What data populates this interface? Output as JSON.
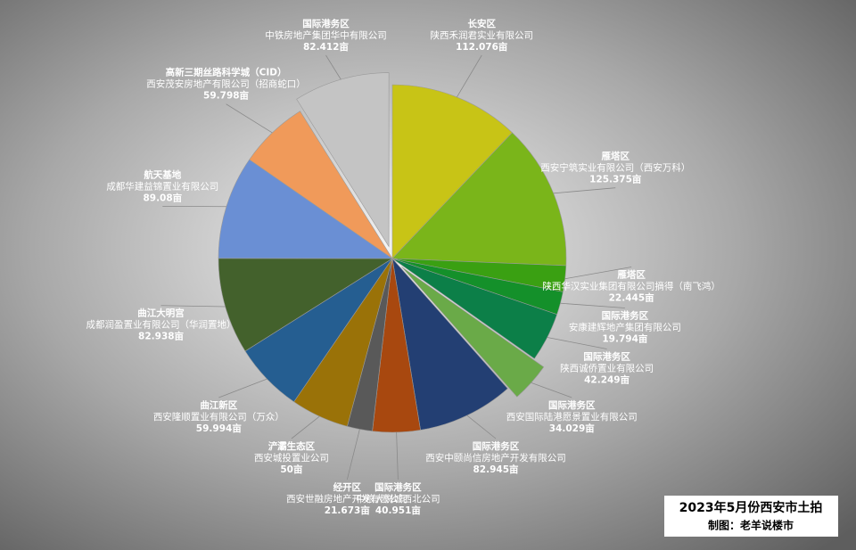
{
  "chart_data": {
    "type": "pie",
    "categories": [
      "长安区",
      "雁塔区",
      "雁塔区",
      "国际港务区",
      "国际港务区",
      "国际港务区",
      "国际港务区",
      "国际港务区",
      "经开区",
      "浐灞生态区",
      "曲江新区",
      "曲江大明宫",
      "航天基地",
      "高新三期丝路科学城（CID）",
      "国际港务区"
    ],
    "companies": [
      "陕西禾润君实业有限公司",
      "西安宁筑实业有限公司（西安万科）",
      "陕西华汉实业集团有限公司摘得（南飞鸿）",
      "安康建辉地产集团有限公司",
      "陕西诚侨置业有限公司",
      "西安国际陆港愿景置业有限公司",
      "西安中颐尚信房地产开发有限公司",
      "中粮大悦城西北公司",
      "西安世融房地产开发有限公司",
      "西安城投置业公司",
      "西安隆顺置业有限公司（万众）",
      "成都润盈置业有限公司（华润置地）",
      "成都华建益锦置业有限公司",
      "西安茂安房地产有限公司（招商蛇口）",
      "中铁房地产集团华中有限公司"
    ],
    "values": [
      112.076,
      125.375,
      22.445,
      19.794,
      42.249,
      34.029,
      82.945,
      40.951,
      21.673,
      50,
      59.994,
      82.938,
      89.08,
      59.798,
      82.412
    ],
    "value_labels": [
      "112.076亩",
      "125.375亩",
      "22.445亩",
      "19.794亩",
      "42.249亩",
      "34.029亩",
      "82.945亩",
      "40.951亩",
      "21.673亩",
      "50亩",
      "59.994亩",
      "82.938亩",
      "89.08亩",
      "59.798亩",
      "82.412亩"
    ],
    "colors": [
      "#c8c416",
      "#7ab51a",
      "#3aa012",
      "#14902a",
      "#0c7f48",
      "#6aaa48",
      "#233f73",
      "#a8480f",
      "#595959",
      "#9a7208",
      "#255e91",
      "#43612c",
      "#6a8fd4",
      "#f09a5a",
      "#c4c4c4"
    ],
    "exploded": [
      false,
      false,
      false,
      false,
      false,
      true,
      false,
      false,
      false,
      false,
      false,
      false,
      false,
      false,
      true
    ],
    "stamp": {
      "title": "2023年5月份西安市土拍",
      "credit": "制图：老羊说楼市"
    }
  }
}
